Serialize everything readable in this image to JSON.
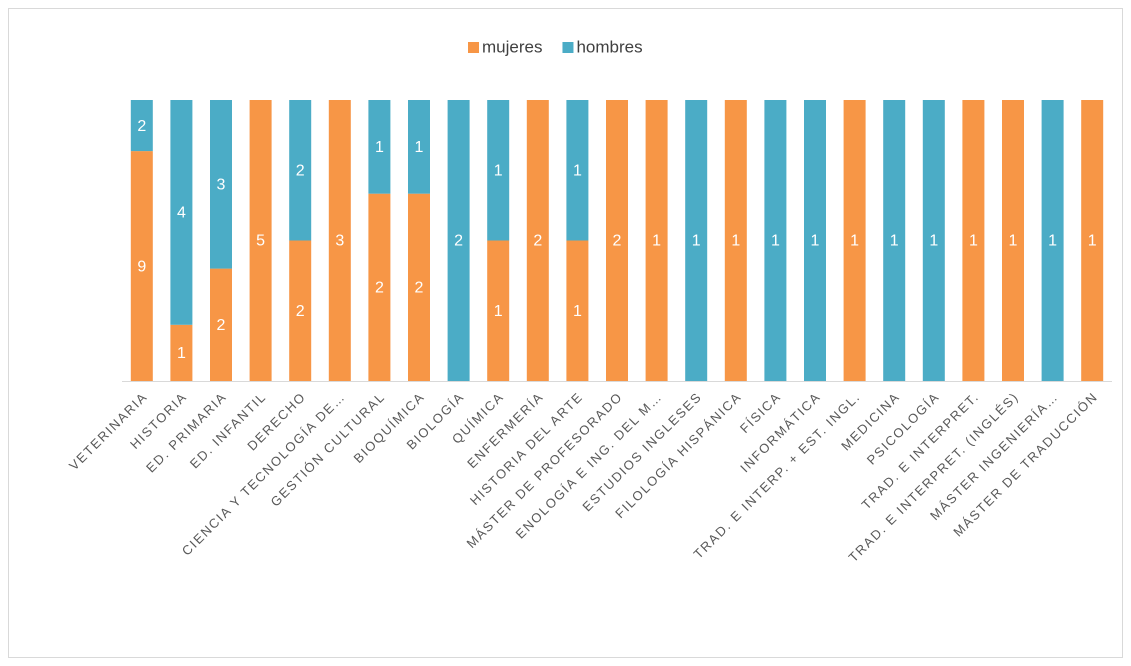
{
  "chart_data": {
    "type": "stacked_percent_bar",
    "categories": [
      "VETERINARIA",
      "HISTORIA",
      "ED. PRIMARIA",
      "ED. INFANTIL",
      "DERECHO",
      "CIENCIA Y TECNOLOGÍA DE…",
      "GESTIÓN CULTURAL",
      "BIOQUÍMICA",
      "BIOLOGÍA",
      "QUÍMICA",
      "ENFERMERÍA",
      "HISTORIA DEL ARTE",
      "MÁSTER DE PROFESORADO",
      "ENOLOGÍA E ING. DEL M…",
      "ESTUDIOS INGLESES",
      "FILOLOGÍA HISPÁNICA",
      "FÍSICA",
      "INFORMÁTICA",
      "TRAD. E INTERP. + EST. INGL.",
      "MEDICINA",
      "PSICOLOGÍA",
      "TRAD. E INTERPRET.",
      "TRAD. E INTERPRET. (INGLÉS)",
      "MÁSTER INGENIERÍA…",
      "MÁSTER DE TRADUCCIÓN"
    ],
    "series": [
      {
        "name": "mujeres",
        "color": "#F79646",
        "values": [
          9,
          1,
          2,
          5,
          2,
          3,
          2,
          2,
          null,
          1,
          2,
          1,
          2,
          1,
          null,
          1,
          null,
          null,
          1,
          null,
          null,
          1,
          1,
          null,
          1
        ]
      },
      {
        "name": "hombres",
        "color": "#4BACC6",
        "values": [
          2,
          4,
          3,
          null,
          2,
          null,
          1,
          1,
          2,
          1,
          null,
          1,
          null,
          null,
          1,
          null,
          1,
          1,
          null,
          1,
          1,
          null,
          null,
          1,
          null
        ]
      }
    ],
    "legend": "top"
  }
}
